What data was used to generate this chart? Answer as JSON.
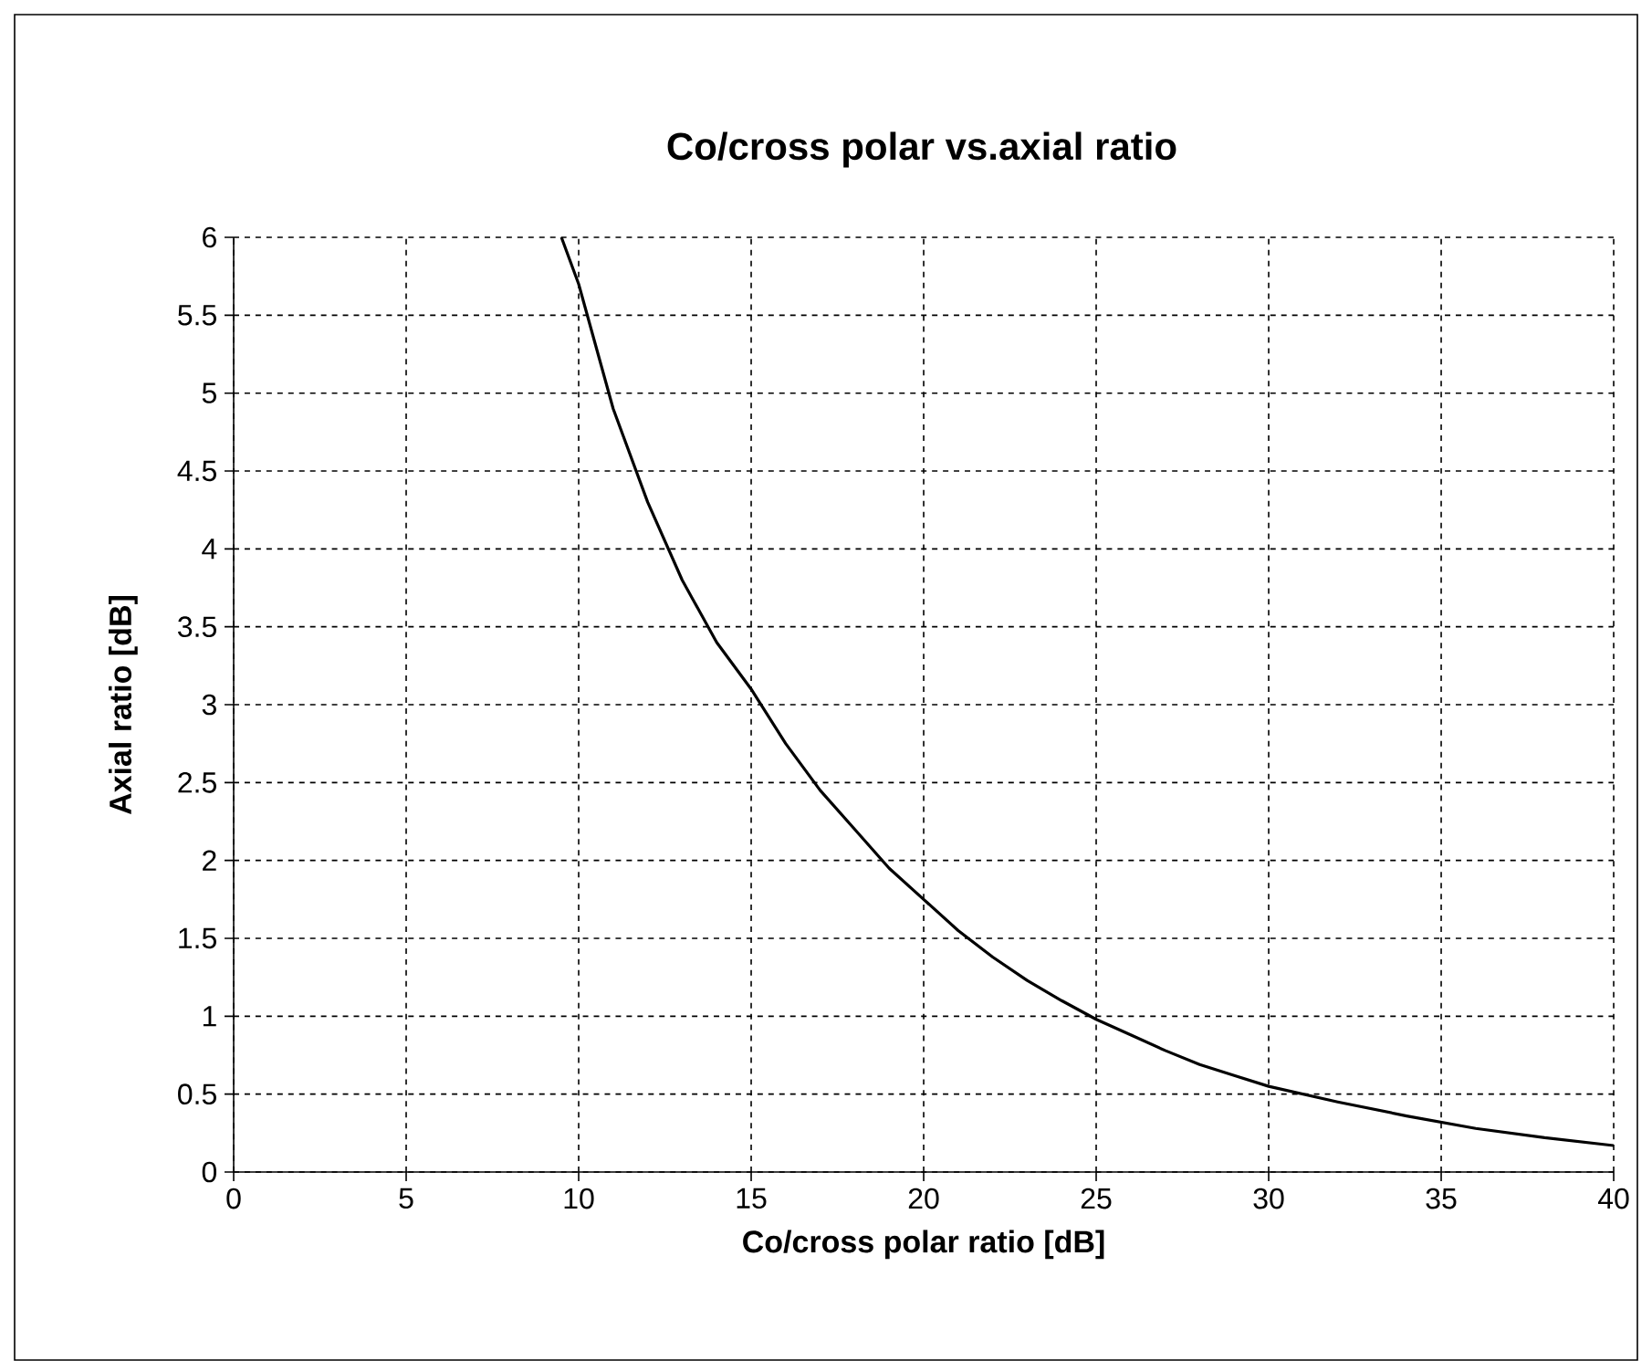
{
  "chart_data": {
    "type": "line",
    "title": "Co/cross polar vs.axial ratio",
    "xlabel": "Co/cross polar ratio [dB]",
    "ylabel": "Axial ratio [dB]",
    "series": [
      {
        "color": "#000000",
        "x": [
          9.5,
          10,
          11,
          12,
          13,
          14,
          15,
          16,
          17,
          18,
          19,
          20,
          21,
          22,
          23,
          24,
          25,
          26,
          27,
          28,
          29,
          30,
          32,
          34,
          36,
          38,
          40
        ],
        "values": [
          6,
          5.7,
          4.9,
          4.3,
          3.8,
          3.4,
          3.1,
          2.75,
          2.45,
          2.2,
          1.95,
          1.75,
          1.55,
          1.38,
          1.23,
          1.1,
          0.98,
          0.88,
          0.78,
          0.69,
          0.62,
          0.55,
          0.45,
          0.36,
          0.28,
          0.22,
          0.17
        ]
      }
    ],
    "xlim": [
      0,
      40
    ],
    "ylim": [
      0,
      6
    ],
    "xticks": [
      0,
      5,
      10,
      15,
      20,
      25,
      30,
      35,
      40
    ],
    "yticks": [
      0,
      0.5,
      1,
      1.5,
      2,
      2.5,
      3,
      3.5,
      4,
      4.5,
      5,
      5.5,
      6
    ],
    "grid": true,
    "line_style": "solid",
    "marker": "none"
  }
}
